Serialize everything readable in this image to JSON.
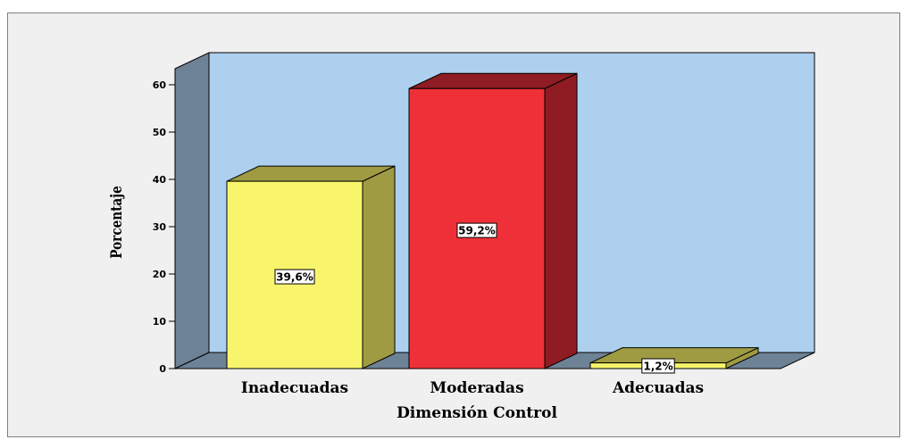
{
  "chart_data": {
    "type": "bar",
    "title": "",
    "xlabel": "Dimensión Control",
    "ylabel": "Porcentaje",
    "categories": [
      "Inadecuadas",
      "Moderadas",
      "Adecuadas"
    ],
    "values": [
      39.6,
      59.2,
      1.2
    ],
    "data_labels": [
      "39,6%",
      "59,2%",
      "1,2%"
    ],
    "ylim": [
      0,
      60
    ],
    "yticks": [
      0,
      10,
      20,
      30,
      40,
      50,
      60
    ],
    "grid": false,
    "legend": "none",
    "style": "3d",
    "colors": {
      "bars": [
        "#f8f56c",
        "#ef3038",
        "#f8f56c"
      ],
      "bar_sides": [
        "#9f9b43",
        "#8e1c22",
        "#9f9b43"
      ],
      "plot_back": "#acd0ee",
      "plot_walls": "#6e8296",
      "background": "#f0f0f0"
    }
  }
}
